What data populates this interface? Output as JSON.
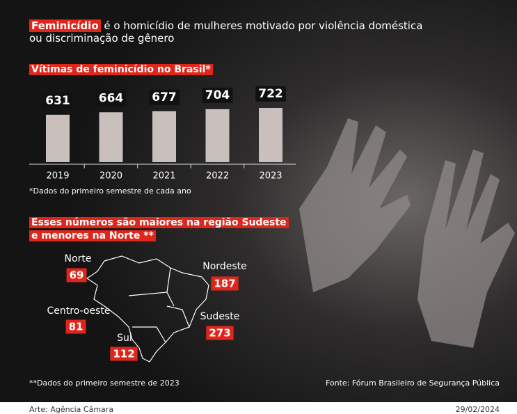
{
  "headline": {
    "highlight": "Feminicídio",
    "text": "é o homicídio de mulheres motivado por violência doméstica ou discriminação de gênero"
  },
  "chart_data": {
    "type": "bar",
    "title": "Vítimas de feminicídio no Brasil*",
    "categories": [
      "2019",
      "2020",
      "2021",
      "2022",
      "2023"
    ],
    "values": [
      631,
      664,
      677,
      704,
      722
    ],
    "color": "#c9bfbd",
    "note": "*Dados do primeiro semestre de cada ano"
  },
  "map": {
    "title": "Esses números são maiores na região Sudeste e menores na Norte **",
    "regions": [
      {
        "name": "Norte",
        "value": 69
      },
      {
        "name": "Nordeste",
        "value": 187
      },
      {
        "name": "Centro-oeste",
        "value": 81
      },
      {
        "name": "Sudeste",
        "value": 273
      },
      {
        "name": "Sul",
        "value": 112
      }
    ],
    "note": "**Dados do primeiro semestre de 2023"
  },
  "source": "Fonte: Fórum Brasileiro de Segurança Pública",
  "footer": {
    "credit": "Arte: Agência Câmara",
    "date": "29/02/2024"
  }
}
